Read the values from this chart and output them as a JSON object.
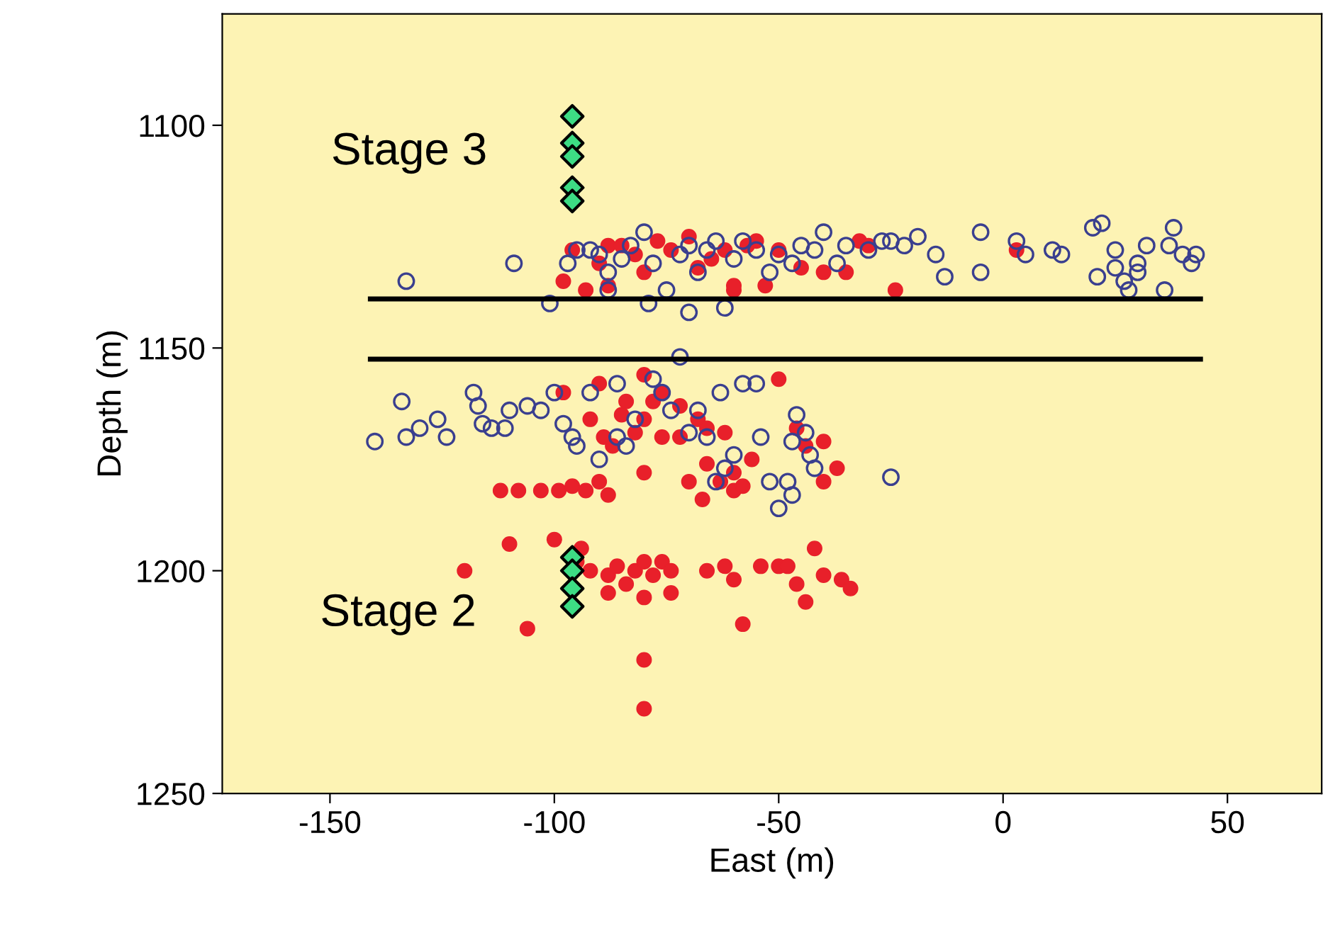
{
  "chart_data": {
    "type": "scatter",
    "xlabel": "East (m)",
    "ylabel": "Depth (m)",
    "xlim": [
      -174,
      71
    ],
    "ylim": [
      1250,
      1075
    ],
    "xticks": [
      -150,
      -100,
      -50,
      0,
      50
    ],
    "yticks": [
      1100,
      1150,
      1200,
      1250
    ],
    "grid": false,
    "legend": false,
    "annotations": [
      "Stage 3",
      "Stage 2"
    ],
    "series": [
      {
        "marker": "circle",
        "color": "#3a3f8f",
        "x": [
          -133,
          -109,
          -101,
          -97,
          -95,
          -92,
          -90,
          -88,
          -85,
          -83,
          -80,
          -78,
          -75,
          -72,
          -70,
          -68,
          -66,
          -64,
          -62,
          -60,
          -58,
          -55,
          -52,
          -50,
          -47,
          -45,
          -42,
          -40,
          -37,
          -35,
          -30,
          -27,
          -25,
          -22,
          -19,
          -15,
          -13,
          -5,
          -5,
          3,
          5,
          11,
          13,
          20,
          22,
          25,
          25,
          27,
          30,
          30,
          32,
          37,
          38,
          40,
          42,
          43,
          28,
          36,
          21,
          -88,
          -70,
          -79,
          -140,
          -134,
          -133,
          -130,
          -126,
          -124,
          -118,
          -117,
          -116,
          -114,
          -111,
          -110,
          -106,
          -103,
          -100,
          -98,
          -96,
          -95,
          -92,
          -90,
          -86,
          -84,
          -82,
          -78,
          -76,
          -74,
          -72,
          -70,
          -68,
          -66,
          -63,
          -60,
          -58,
          -55,
          -54,
          -52,
          -47,
          -46,
          -44,
          -43,
          -42,
          -48,
          -47,
          -50,
          -25,
          -62,
          -64,
          -86
        ],
        "values": [
          1135,
          1131,
          1140,
          1131,
          1128,
          1128,
          1129,
          1133,
          1130,
          1127,
          1124,
          1131,
          1137,
          1129,
          1127,
          1133,
          1128,
          1126,
          1141,
          1130,
          1126,
          1128,
          1133,
          1129,
          1131,
          1127,
          1128,
          1124,
          1131,
          1127,
          1128,
          1126,
          1126,
          1127,
          1125,
          1129,
          1134,
          1124,
          1133,
          1126,
          1129,
          1128,
          1129,
          1123,
          1122,
          1128,
          1132,
          1135,
          1131,
          1133,
          1127,
          1127,
          1123,
          1129,
          1131,
          1129,
          1137,
          1137,
          1134,
          1137,
          1142,
          1140,
          1171,
          1162,
          1170,
          1168,
          1166,
          1170,
          1160,
          1163,
          1167,
          1168,
          1168,
          1164,
          1163,
          1164,
          1160,
          1167,
          1170,
          1172,
          1160,
          1175,
          1170,
          1172,
          1166,
          1157,
          1160,
          1164,
          1152,
          1169,
          1164,
          1170,
          1160,
          1174,
          1158,
          1158,
          1170,
          1180,
          1171,
          1165,
          1169,
          1174,
          1177,
          1180,
          1183,
          1186,
          1179,
          1177,
          1180,
          1158
        ]
      },
      {
        "marker": "circle",
        "color": "#e8202a",
        "x": [
          -96,
          -93,
          -90,
          -88,
          -85,
          -82,
          -80,
          -77,
          -74,
          -70,
          -68,
          -65,
          -62,
          -60,
          -57,
          -55,
          -53,
          -50,
          -45,
          -40,
          -35,
          -32,
          -30,
          -24,
          3,
          -88,
          -60,
          -98,
          -98,
          -90,
          -84,
          -80,
          -78,
          -76,
          -72,
          -68,
          -85,
          -82,
          -80,
          -76,
          -72,
          -89,
          -87,
          -92,
          -66,
          -62,
          -56,
          -50,
          -46,
          -44,
          -60,
          -66,
          -40,
          -37,
          -112,
          -108,
          -103,
          -99,
          -96,
          -93,
          -90,
          -88,
          -80,
          -70,
          -67,
          -63,
          -60,
          -58,
          -40,
          -100,
          -120,
          -110,
          -95,
          -92,
          -88,
          -86,
          -84,
          -82,
          -80,
          -78,
          -76,
          -74,
          -88,
          -80,
          -74,
          -66,
          -62,
          -60,
          -54,
          -50,
          -48,
          -46,
          -42,
          -44,
          -40,
          -36,
          -34,
          -58,
          -106,
          -80,
          -80,
          -94
        ],
        "values": [
          1128,
          1137,
          1131,
          1127,
          1127,
          1129,
          1133,
          1126,
          1128,
          1125,
          1132,
          1130,
          1128,
          1137,
          1127,
          1126,
          1136,
          1128,
          1132,
          1133,
          1133,
          1126,
          1127,
          1137,
          1128,
          1136,
          1136,
          1135,
          1160,
          1158,
          1162,
          1156,
          1162,
          1160,
          1163,
          1166,
          1165,
          1169,
          1166,
          1170,
          1170,
          1170,
          1172,
          1166,
          1168,
          1169,
          1175,
          1157,
          1168,
          1172,
          1178,
          1176,
          1171,
          1177,
          1182,
          1182,
          1182,
          1182,
          1181,
          1182,
          1180,
          1183,
          1178,
          1180,
          1184,
          1180,
          1182,
          1181,
          1180,
          1193,
          1200,
          1194,
          1198,
          1200,
          1201,
          1199,
          1203,
          1200,
          1198,
          1201,
          1198,
          1200,
          1205,
          1206,
          1205,
          1200,
          1199,
          1202,
          1199,
          1199,
          1199,
          1203,
          1195,
          1207,
          1201,
          1202,
          1204,
          1212,
          1213,
          1220,
          1231,
          1195
        ]
      },
      {
        "marker": "diamond",
        "color": "#3ddc84",
        "x": [
          -96,
          -96,
          -96,
          -96,
          -96,
          -96,
          -96,
          -96,
          -96
        ],
        "values": [
          1098,
          1104,
          1107,
          1114,
          1117,
          1197,
          1200,
          1204,
          1208
        ]
      },
      {
        "type": "line",
        "marker": "none",
        "color": "#000000",
        "x": [
          -141,
          44
        ],
        "values": [
          1139,
          1139
        ]
      },
      {
        "type": "line",
        "marker": "none",
        "color": "#000000",
        "x": [
          -141,
          44
        ],
        "values": [
          1152.5,
          1152.5
        ]
      }
    ]
  }
}
